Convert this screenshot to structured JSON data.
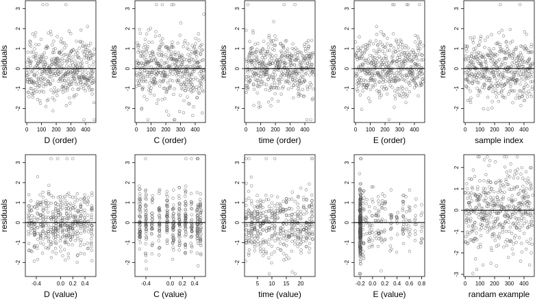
{
  "chart_data": [
    {
      "id": "p1",
      "type": "scatter",
      "xlabel": "D (order)",
      "ylabel": "residuals",
      "xlim": [
        -10,
        470
      ],
      "ylim": [
        -2.7,
        3.4
      ],
      "xticks": [
        0,
        100,
        200,
        300,
        400
      ],
      "yticks": [
        -2,
        -1,
        0,
        1,
        2,
        3
      ],
      "hline": 0,
      "gen": {
        "n": 460,
        "kind": "order",
        "spread": 0.75,
        "seed": 11
      }
    },
    {
      "id": "p2",
      "type": "scatter",
      "xlabel": "C (order)",
      "ylabel": "residuals",
      "xlim": [
        -10,
        470
      ],
      "ylim": [
        -2.7,
        3.4
      ],
      "xticks": [
        0,
        100,
        200,
        300,
        400
      ],
      "yticks": [
        -2,
        -1,
        0,
        1,
        2,
        3
      ],
      "hline": 0,
      "gen": {
        "n": 460,
        "kind": "order",
        "spread": 0.8,
        "seed": 23
      }
    },
    {
      "id": "p3",
      "type": "scatter",
      "xlabel": "time (order)",
      "ylabel": "residuals",
      "xlim": [
        -10,
        470
      ],
      "ylim": [
        -2.7,
        3.4
      ],
      "xticks": [
        0,
        100,
        200,
        300,
        400
      ],
      "yticks": [
        -2,
        -1,
        0,
        1,
        2,
        3
      ],
      "hline": 0,
      "gen": {
        "n": 460,
        "kind": "order",
        "spread": 0.78,
        "seed": 37
      }
    },
    {
      "id": "p4",
      "type": "scatter",
      "xlabel": "E (order)",
      "ylabel": "residuals",
      "xlim": [
        -10,
        470
      ],
      "ylim": [
        -2.7,
        3.4
      ],
      "xticks": [
        0,
        100,
        200,
        300,
        400
      ],
      "yticks": [
        -2,
        -1,
        0,
        1,
        2,
        3
      ],
      "hline": 0,
      "gen": {
        "n": 460,
        "kind": "order",
        "spread": 0.8,
        "seed": 41
      }
    },
    {
      "id": "p5",
      "type": "scatter",
      "xlabel": "sample index",
      "ylabel": "residuals",
      "xlim": [
        -10,
        470
      ],
      "ylim": [
        -2.7,
        3.4
      ],
      "xticks": [
        0,
        100,
        200,
        300,
        400
      ],
      "yticks": [
        -2,
        -1,
        0,
        1,
        2,
        3
      ],
      "hline": 0,
      "gen": {
        "n": 460,
        "kind": "order",
        "spread": 0.8,
        "seed": 53
      }
    },
    {
      "id": "p6",
      "type": "scatter",
      "xlabel": "D (value)",
      "ylabel": "residuals",
      "xlim": [
        -0.58,
        0.58
      ],
      "ylim": [
        -2.7,
        3.4
      ],
      "xticks": [
        -0.4,
        0,
        0.2,
        0.4
      ],
      "xticklabels": [
        "-0.4",
        "0.0",
        "0.2",
        "0.4"
      ],
      "yticks": [
        -2,
        -1,
        0,
        1,
        2,
        3
      ],
      "hline": 0,
      "gen": {
        "n": 460,
        "kind": "levels",
        "levels": [
          -0.52,
          -0.48,
          -0.43,
          -0.38,
          -0.33,
          -0.29,
          -0.24,
          -0.2,
          -0.16,
          -0.12,
          -0.08,
          -0.04,
          0,
          0.03,
          0.07,
          0.1,
          0.13,
          0.16,
          0.2,
          0.24,
          0.28,
          0.33,
          0.39,
          0.45,
          0.51
        ],
        "jitter": 0.008,
        "spread": 0.75,
        "seed": 61
      }
    },
    {
      "id": "p7",
      "type": "scatter",
      "xlabel": "C (value)",
      "ylabel": "residuals",
      "xlim": [
        -0.58,
        0.58
      ],
      "ylim": [
        -2.7,
        3.4
      ],
      "xticks": [
        -0.4,
        0,
        0.2,
        0.4
      ],
      "xticklabels": [
        "-0.4",
        "0.0",
        "0.2",
        "0.4"
      ],
      "yticks": [
        -2,
        -1,
        0,
        1,
        2,
        3
      ],
      "hline": 0,
      "gen": {
        "n": 460,
        "kind": "levels",
        "levels": [
          -0.5,
          -0.4,
          -0.3,
          -0.18,
          -0.05,
          0.05,
          0.15,
          0.25,
          0.35,
          0.45,
          0.5
        ],
        "jitter": 0.01,
        "spread": 0.8,
        "seed": 71
      }
    },
    {
      "id": "p8",
      "type": "scatter",
      "xlabel": "time (value)",
      "ylabel": "residuals",
      "xlim": [
        0.5,
        25
      ],
      "ylim": [
        -2.7,
        3.4
      ],
      "xticks": [
        5,
        10,
        15,
        20
      ],
      "yticks": [
        -2,
        -1,
        0,
        1,
        2,
        3
      ],
      "hline": 0,
      "gen": {
        "n": 460,
        "kind": "levels",
        "levels": [
          1,
          2,
          3,
          4,
          5,
          6,
          7,
          8,
          9,
          10,
          11,
          12,
          13,
          14,
          15,
          16,
          17,
          18,
          19,
          20,
          21,
          22,
          23,
          24
        ],
        "jitter": 0.15,
        "spread": 0.78,
        "seed": 83
      }
    },
    {
      "id": "p9",
      "type": "scatter",
      "xlabel": "E (value)",
      "ylabel": "residuals",
      "xlim": [
        -0.3,
        0.85
      ],
      "ylim": [
        -2.7,
        3.4
      ],
      "xticks": [
        -0.2,
        0,
        0.2,
        0.4,
        0.6,
        0.8
      ],
      "xticklabels": [
        "-0.2",
        "0.0",
        "0.2",
        "0.4",
        "0.6",
        "0.8"
      ],
      "yticks": [
        -2,
        -1,
        0,
        1,
        2,
        3
      ],
      "hline": 0,
      "gen": {
        "n": 460,
        "kind": "skew",
        "clusterX": -0.2,
        "clusterFrac": 0.62,
        "levels": [
          -0.15,
          -0.1,
          -0.05,
          0,
          0.05,
          0.1,
          0.15,
          0.2,
          0.3,
          0.4,
          0.5,
          0.55,
          0.6,
          0.7,
          0.8
        ],
        "jitter": 0.012,
        "spread": 0.8,
        "seed": 97
      }
    },
    {
      "id": "p10",
      "type": "scatter",
      "xlabel": "randam example",
      "ylabel": "residuals",
      "xlim": [
        -10,
        470
      ],
      "ylim": [
        -3.1,
        2.6
      ],
      "xticks": [
        0,
        100,
        200,
        300,
        400
      ],
      "yticks": [
        -3,
        -2,
        -1,
        0,
        1,
        2
      ],
      "hline": 0,
      "gen": {
        "n": 460,
        "kind": "order",
        "spread": 1.0,
        "seed": 109
      }
    }
  ]
}
